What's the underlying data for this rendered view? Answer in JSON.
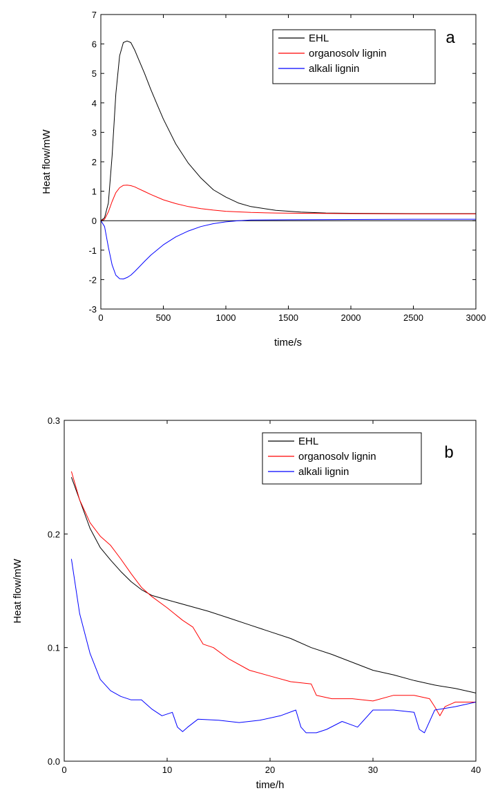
{
  "chart_data": [
    {
      "type": "line",
      "panel_label": "a",
      "xlabel": "time/s",
      "ylabel": "Heat flow/mW",
      "xlim": [
        0,
        3000
      ],
      "ylim": [
        -3,
        7
      ],
      "xticks": [
        0,
        500,
        1000,
        1500,
        2000,
        2500,
        3000
      ],
      "yticks": [
        -3,
        -2,
        -1,
        0,
        1,
        2,
        3,
        4,
        5,
        6,
        7
      ],
      "legend_position": "top-right",
      "zero_line": true,
      "series": [
        {
          "name": "EHL",
          "color": "#000000",
          "x": [
            0,
            30,
            60,
            90,
            120,
            150,
            180,
            210,
            240,
            270,
            300,
            350,
            400,
            450,
            500,
            600,
            700,
            800,
            900,
            1000,
            1100,
            1200,
            1400,
            1600,
            1800,
            2000,
            2500,
            3000
          ],
          "y": [
            0,
            0.1,
            0.6,
            2.2,
            4.3,
            5.6,
            6.05,
            6.1,
            6.05,
            5.8,
            5.5,
            5.0,
            4.45,
            3.95,
            3.45,
            2.6,
            1.95,
            1.45,
            1.05,
            0.8,
            0.6,
            0.48,
            0.35,
            0.29,
            0.26,
            0.25,
            0.24,
            0.24
          ]
        },
        {
          "name": "organosolv lignin",
          "color": "#ff0000",
          "x": [
            0,
            30,
            60,
            90,
            120,
            150,
            180,
            210,
            240,
            270,
            300,
            350,
            400,
            500,
            600,
            700,
            800,
            900,
            1000,
            1200,
            1400,
            1600,
            2000,
            2500,
            3000
          ],
          "y": [
            0,
            0.05,
            0.3,
            0.65,
            0.95,
            1.12,
            1.2,
            1.21,
            1.19,
            1.15,
            1.09,
            0.99,
            0.89,
            0.71,
            0.58,
            0.48,
            0.41,
            0.36,
            0.32,
            0.28,
            0.26,
            0.25,
            0.24,
            0.23,
            0.23
          ]
        },
        {
          "name": "alkali lignin",
          "color": "#0000ff",
          "x": [
            0,
            30,
            60,
            90,
            120,
            150,
            180,
            210,
            240,
            270,
            300,
            350,
            400,
            500,
            600,
            700,
            800,
            900,
            1000,
            1100,
            1200,
            1500,
            2000,
            2500,
            3000
          ],
          "y": [
            0,
            -0.2,
            -0.9,
            -1.5,
            -1.85,
            -1.97,
            -1.98,
            -1.93,
            -1.85,
            -1.73,
            -1.6,
            -1.38,
            -1.17,
            -0.82,
            -0.55,
            -0.35,
            -0.2,
            -0.1,
            -0.04,
            0.0,
            0.02,
            0.03,
            0.04,
            0.05,
            0.05
          ]
        }
      ]
    },
    {
      "type": "line",
      "panel_label": "b",
      "xlabel": "time/h",
      "ylabel": "Heat flow/mW",
      "xlim": [
        0,
        40
      ],
      "ylim": [
        0,
        0.3
      ],
      "xticks": [
        0,
        10,
        20,
        30,
        40
      ],
      "yticks": [
        0.0,
        0.1,
        0.2,
        0.3
      ],
      "ytick_labels": [
        "0.0",
        "0.1",
        "0.2",
        "0.3"
      ],
      "legend_position": "top-right",
      "series": [
        {
          "name": "EHL",
          "color": "#000000",
          "x": [
            0.7,
            1.5,
            2.5,
            3.5,
            4.5,
            5.5,
            6.5,
            7.5,
            8.5,
            10,
            12,
            14,
            16,
            18,
            20,
            22,
            24,
            26,
            28,
            30,
            32,
            34,
            36,
            38,
            40
          ],
          "y": [
            0.25,
            0.23,
            0.205,
            0.188,
            0.177,
            0.167,
            0.158,
            0.151,
            0.146,
            0.142,
            0.137,
            0.132,
            0.126,
            0.12,
            0.114,
            0.108,
            0.1,
            0.094,
            0.087,
            0.08,
            0.076,
            0.071,
            0.067,
            0.064,
            0.06
          ]
        },
        {
          "name": "organosolv lignin",
          "color": "#ff0000",
          "x": [
            0.7,
            1.5,
            2.5,
            3.5,
            4.5,
            5.5,
            6.5,
            7.5,
            8.5,
            10,
            11.5,
            12.5,
            13.5,
            14.5,
            16,
            18,
            20,
            22,
            24,
            24.5,
            26,
            28,
            30,
            32,
            34,
            35.5,
            36,
            36.5,
            37,
            38,
            40
          ],
          "y": [
            0.255,
            0.23,
            0.21,
            0.198,
            0.19,
            0.178,
            0.165,
            0.153,
            0.145,
            0.135,
            0.124,
            0.118,
            0.103,
            0.1,
            0.09,
            0.08,
            0.075,
            0.07,
            0.068,
            0.058,
            0.055,
            0.055,
            0.053,
            0.058,
            0.058,
            0.055,
            0.048,
            0.04,
            0.048,
            0.052,
            0.052
          ]
        },
        {
          "name": "alkali lignin",
          "color": "#0000ff",
          "x": [
            0.7,
            1.5,
            2.5,
            3.5,
            4.5,
            5.5,
            6.5,
            7.5,
            8.5,
            9.5,
            10.5,
            11,
            11.5,
            12,
            13,
            15,
            17,
            19,
            21,
            22.5,
            23,
            23.5,
            24.5,
            25.5,
            27,
            28.5,
            30,
            32,
            34,
            34.5,
            35,
            36,
            38,
            40
          ],
          "y": [
            0.178,
            0.13,
            0.095,
            0.072,
            0.062,
            0.057,
            0.054,
            0.054,
            0.046,
            0.04,
            0.043,
            0.03,
            0.026,
            0.03,
            0.037,
            0.036,
            0.034,
            0.036,
            0.04,
            0.045,
            0.03,
            0.025,
            0.025,
            0.028,
            0.035,
            0.03,
            0.045,
            0.045,
            0.043,
            0.028,
            0.025,
            0.045,
            0.048,
            0.052
          ]
        }
      ]
    }
  ]
}
